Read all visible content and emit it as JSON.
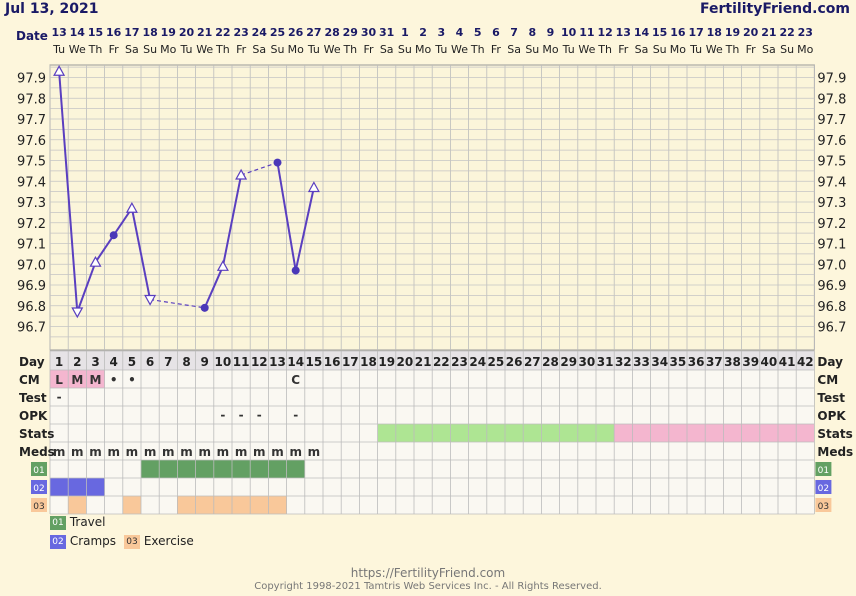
{
  "header": {
    "date": "Jul 13, 2021",
    "brand": "FertilityFriend.com"
  },
  "footer": {
    "url": "https://FertilityFriend.com",
    "copyright": "Copyright 1998-2021 Tamtris Web Services Inc. - All Rights Reserved."
  },
  "chart_data": {
    "type": "line",
    "title": "",
    "xlabel": "Date",
    "ylabel": "",
    "dates": [
      "13",
      "14",
      "15",
      "16",
      "17",
      "18",
      "19",
      "20",
      "21",
      "22",
      "23",
      "24",
      "25",
      "26",
      "27",
      "28",
      "29",
      "30",
      "31",
      "1",
      "2",
      "3",
      "4",
      "5",
      "6",
      "7",
      "8",
      "9",
      "10",
      "11",
      "12",
      "13",
      "14",
      "15",
      "16",
      "17",
      "18",
      "19",
      "20",
      "21",
      "22",
      "23"
    ],
    "weekdays": [
      "Tu",
      "We",
      "Th",
      "Fr",
      "Sa",
      "Su",
      "Mo",
      "Tu",
      "We",
      "Th",
      "Fr",
      "Sa",
      "Su",
      "Mo",
      "Tu",
      "We",
      "Th",
      "Fr",
      "Sa",
      "Su",
      "Mo",
      "Tu",
      "We",
      "Th",
      "Fr",
      "Sa",
      "Su",
      "Mo",
      "Tu",
      "We",
      "Th",
      "Fr",
      "Sa",
      "Su",
      "Mo",
      "Tu",
      "We",
      "Th",
      "Fr",
      "Sa",
      "Su",
      "Mo"
    ],
    "y_ticks": [
      "97.9",
      "97.8",
      "97.7",
      "97.6",
      "97.5",
      "97.4",
      "97.3",
      "97.2",
      "97.1",
      "97.0",
      "96.9",
      "96.8",
      "96.7"
    ],
    "ylim": [
      96.65,
      98.0
    ],
    "grid": true,
    "temps": [
      {
        "day": 1,
        "temp": 97.93,
        "marker": "up",
        "dashed_from_prev": false
      },
      {
        "day": 2,
        "temp": 96.77,
        "marker": "down",
        "dashed_from_prev": false
      },
      {
        "day": 3,
        "temp": 97.01,
        "marker": "up",
        "dashed_from_prev": false
      },
      {
        "day": 4,
        "temp": 97.14,
        "marker": "dot",
        "dashed_from_prev": false
      },
      {
        "day": 5,
        "temp": 97.27,
        "marker": "up",
        "dashed_from_prev": false
      },
      {
        "day": 6,
        "temp": 96.83,
        "marker": "down",
        "dashed_from_prev": false
      },
      {
        "day": 9,
        "temp": 96.79,
        "marker": "dot",
        "dashed_from_prev": true
      },
      {
        "day": 10,
        "temp": 96.99,
        "marker": "up",
        "dashed_from_prev": false
      },
      {
        "day": 11,
        "temp": 97.43,
        "marker": "up",
        "dashed_from_prev": false
      },
      {
        "day": 13,
        "temp": 97.49,
        "marker": "dot",
        "dashed_from_prev": true
      },
      {
        "day": 14,
        "temp": 96.97,
        "marker": "dot",
        "dashed_from_prev": false
      },
      {
        "day": 15,
        "temp": 97.37,
        "marker": "up",
        "dashed_from_prev": false
      }
    ],
    "rows": {
      "day_label": "Day",
      "cm_label": "CM",
      "test_label": "Test",
      "opk_label": "OPK",
      "stats_label": "Stats",
      "meds_label": "Meds",
      "cm": [
        {
          "day": 1,
          "text": "L"
        },
        {
          "day": 2,
          "text": "M"
        },
        {
          "day": 3,
          "text": "M"
        },
        {
          "day": 4,
          "text": "•"
        },
        {
          "day": 5,
          "text": "•"
        },
        {
          "day": 14,
          "text": "C"
        }
      ],
      "cm_pink_days": [
        1,
        2,
        3
      ],
      "test": [
        {
          "day": 1,
          "text": "-"
        }
      ],
      "opk": [
        {
          "day": 10,
          "text": "-"
        },
        {
          "day": 11,
          "text": "-"
        },
        {
          "day": 12,
          "text": "-"
        },
        {
          "day": 14,
          "text": "-"
        }
      ],
      "stats_green": [
        19,
        31
      ],
      "stats_pink": [
        32,
        42
      ],
      "meds": [
        1,
        2,
        3,
        4,
        5,
        6,
        7,
        8,
        9,
        10,
        11,
        12,
        13,
        14,
        15
      ],
      "meds_mark": "m"
    },
    "custom_rows": [
      {
        "code": "01",
        "name": "Travel",
        "color": "#63a063",
        "days": [
          6,
          7,
          8,
          9,
          10,
          11,
          12,
          13,
          14
        ]
      },
      {
        "code": "02",
        "name": "Cramps",
        "color": "#6868e0",
        "days": [
          1,
          2,
          3
        ]
      },
      {
        "code": "03",
        "name": "Exercise",
        "color": "#f9c89a",
        "days": [
          2,
          5,
          8,
          9,
          10,
          11,
          12,
          13
        ]
      }
    ]
  }
}
